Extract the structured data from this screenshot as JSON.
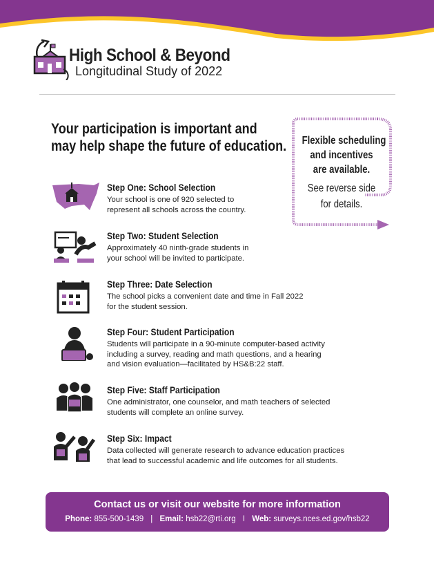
{
  "brand": {
    "purple": "#84368f",
    "yellow": "#fcc52a",
    "light_purple": "#a565b0"
  },
  "logo": {
    "title": "High School & Beyond",
    "subtitle": "Longitudinal Study of 2022"
  },
  "headline": [
    "Your participation is important and",
    "may help shape the future of education."
  ],
  "callout": {
    "bold_lines": [
      "Flexible scheduling",
      "and incentives",
      "are available."
    ],
    "normal_lines": [
      "See reverse side",
      "for details."
    ]
  },
  "steps": [
    {
      "title": "Step One: School Selection",
      "body": "Your school is one of 920 selected to\nrepresent all schools across the country.",
      "icon": "us-map-school-icon"
    },
    {
      "title": "Step Two: Student Selection",
      "body": "Approximately 40 ninth-grade students in\nyour school will be invited to participate.",
      "icon": "classroom-teacher-icon"
    },
    {
      "title": "Step Three: Date Selection",
      "body": "The school picks a convenient date and time in Fall 2022\nfor the student session.",
      "icon": "calendar-icon"
    },
    {
      "title": "Step Four: Student Participation",
      "body": "Students will participate in a 90-minute computer-based activity\nincluding a survey, reading and math questions, and a hearing\nand vision evaluation—facilitated by HS&B:22 staff.",
      "icon": "student-laptop-icon"
    },
    {
      "title": "Step Five: Staff Participation",
      "body": "One administrator, one counselor, and math teachers of selected\nstudents will complete an online survey.",
      "icon": "staff-group-icon"
    },
    {
      "title": "Step Six: Impact",
      "body": "Data collected will generate research to advance education practices\nthat lead to successful academic and life outcomes for all students.",
      "icon": "high-five-icon"
    }
  ],
  "footer": {
    "title": "Contact us or visit our website for more information",
    "phone_label": "Phone:",
    "phone": "855-500-1439",
    "email_label": "Email:",
    "email": "hsb22@rti.org",
    "web_label": "Web:",
    "web": "surveys.nces.ed.gov/hsb22",
    "sep1": "|",
    "sep2": "I"
  }
}
